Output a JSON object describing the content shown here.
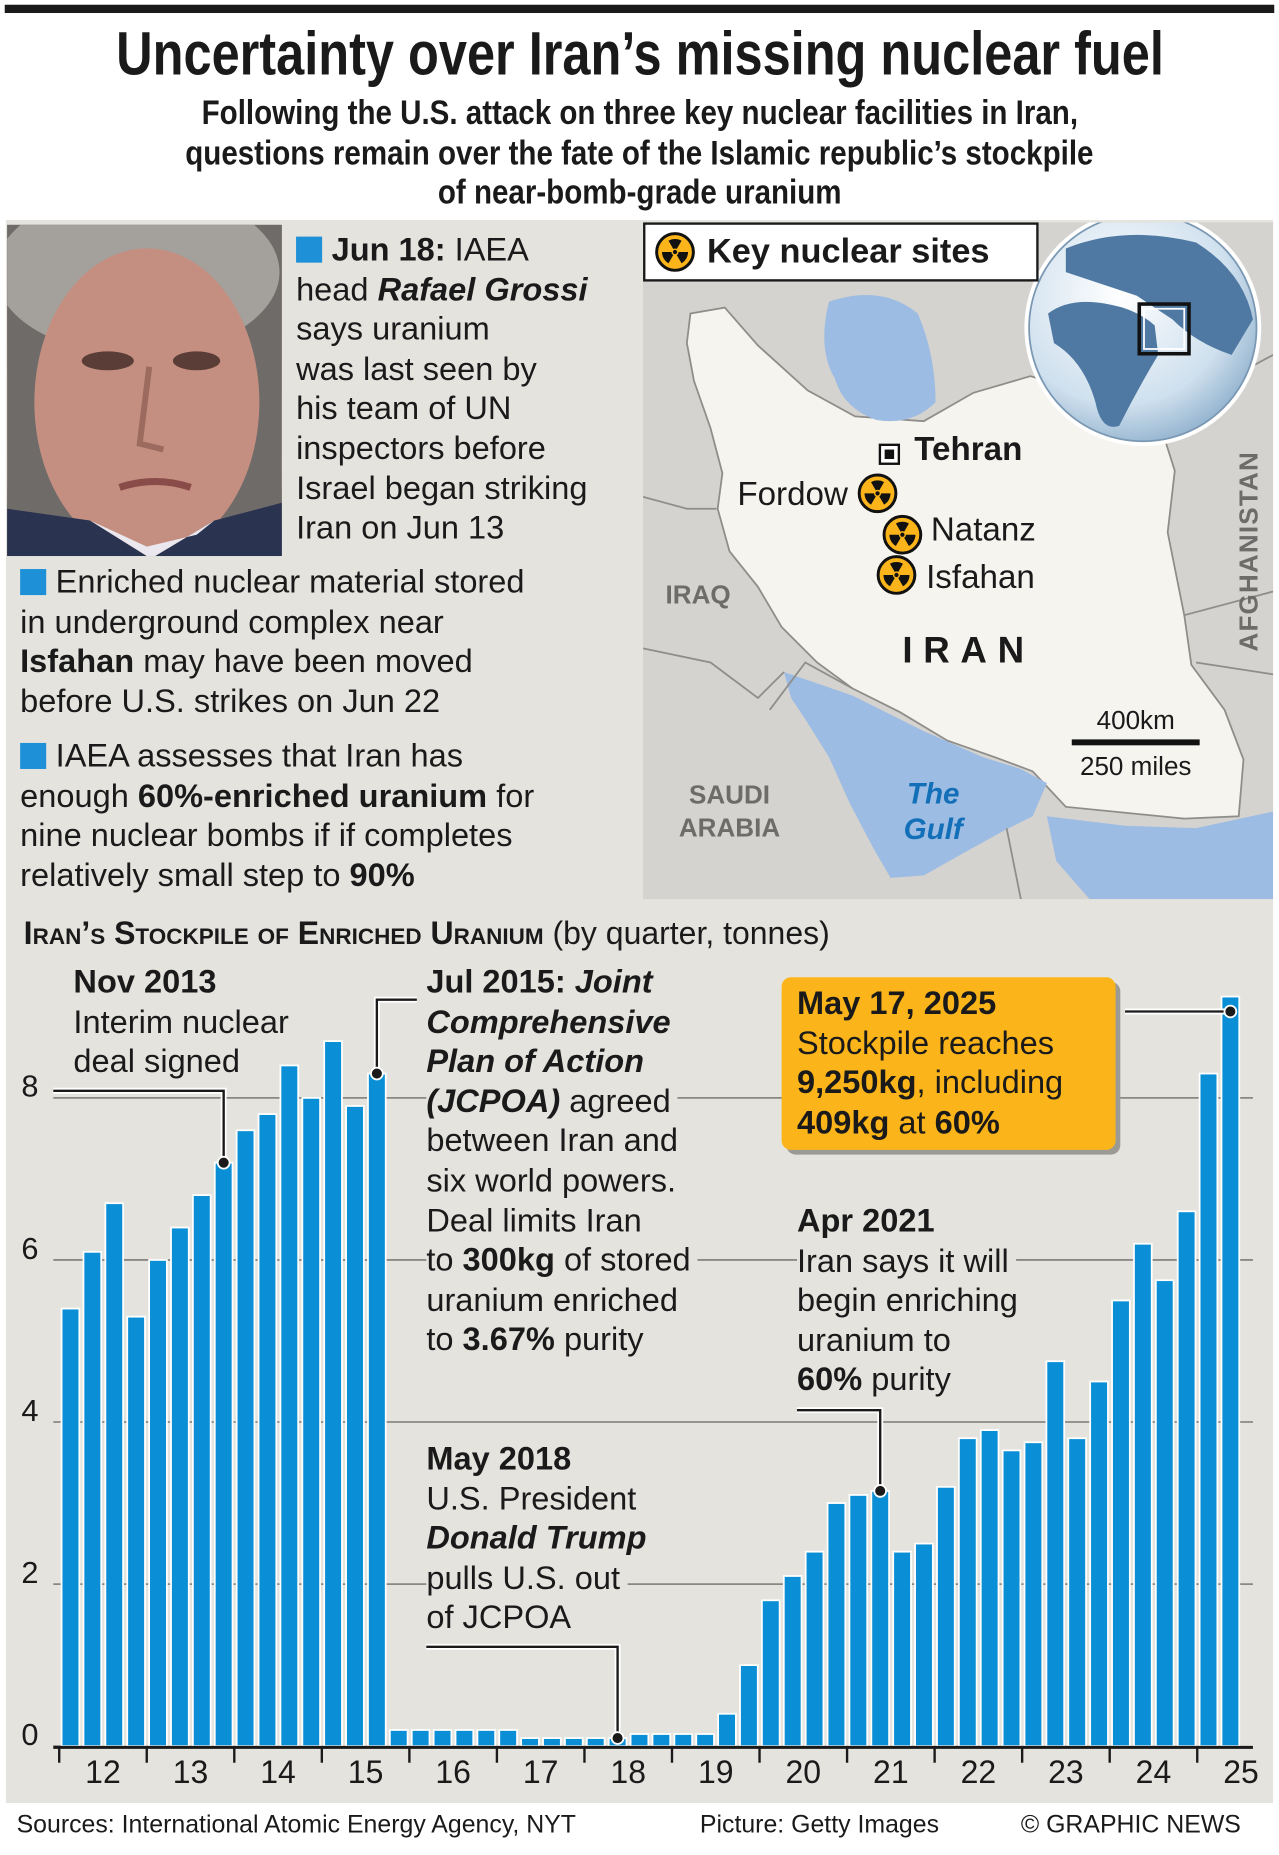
{
  "header": {
    "title": "Uncertainty over Iran’s missing nuclear fuel",
    "subtitle_lines": [
      "Following the U.S. attack on three key nuclear facilities in Iran,",
      "questions remain over the fate of the Islamic republic’s stockpile",
      "of near-bomb-grade uranium"
    ]
  },
  "colors": {
    "bar": "#0a8fd6",
    "bullet": "#1e90d8",
    "highlight_box": "#fbb51a",
    "panel_bg": "#e4e3de",
    "water": "#9dbce3",
    "gulf_label": "#1370b8"
  },
  "photo": {
    "subject": "Rafael Grossi",
    "credit": "Picture: Getty Images"
  },
  "notes": [
    {
      "bullet": true,
      "lines": [
        [
          {
            "t": "Jun 18:",
            "s": "b"
          },
          {
            "t": " IAEA",
            "s": ""
          }
        ],
        [
          {
            "t": "head ",
            "s": ""
          },
          {
            "t": "Rafael Grossi",
            "s": "bi"
          }
        ],
        [
          {
            "t": "says uranium",
            "s": ""
          }
        ],
        [
          {
            "t": "was last seen by",
            "s": ""
          }
        ],
        [
          {
            "t": "his team of UN",
            "s": ""
          }
        ],
        [
          {
            "t": "inspectors before",
            "s": ""
          }
        ],
        [
          {
            "t": "Israel began striking",
            "s": ""
          }
        ],
        [
          {
            "t": "Iran on Jun 13",
            "s": ""
          }
        ]
      ]
    },
    {
      "bullet": true,
      "lines": [
        [
          {
            "t": "Enriched nuclear material stored",
            "s": ""
          }
        ],
        [
          {
            "t": "in underground complex near",
            "s": ""
          }
        ],
        [
          {
            "t": "Isfahan",
            "s": "b"
          },
          {
            "t": " may have been moved",
            "s": ""
          }
        ],
        [
          {
            "t": "before U.S. strikes on Jun 22",
            "s": ""
          }
        ]
      ]
    },
    {
      "bullet": true,
      "lines": [
        [
          {
            "t": "IAEA assesses that Iran has",
            "s": ""
          }
        ],
        [
          {
            "t": "enough ",
            "s": ""
          },
          {
            "t": "60%-enriched uranium",
            "s": "b"
          },
          {
            "t": " for",
            "s": ""
          }
        ],
        [
          {
            "t": "nine nuclear bombs if if completes",
            "s": ""
          }
        ],
        [
          {
            "t": "relatively small step to ",
            "s": ""
          },
          {
            "t": "90%",
            "s": "b"
          }
        ]
      ]
    }
  ],
  "map": {
    "title": "Key nuclear sites",
    "legend_icon": "radiation-icon",
    "capital": "Tehran",
    "sites": [
      "Fordow",
      "Natanz",
      "Isfahan"
    ],
    "country": "IRAN",
    "neighbors": [
      "IRAQ",
      "SAUDI",
      "ARABIA",
      "AFGHANISTAN"
    ],
    "water": [
      "The",
      "Gulf"
    ],
    "scale_km": "400km",
    "scale_miles": "250 miles"
  },
  "chart_data": {
    "type": "bar",
    "title": "Iran’s Stockpile of Enriched Uranium",
    "subtitle": "(by quarter, tonnes)",
    "ylim": [
      0,
      9.5
    ],
    "yticks": [
      "0",
      "2",
      "4",
      "6",
      "8"
    ],
    "grid": true,
    "xtick_labels": [
      "12",
      "13",
      "14",
      "15",
      "16",
      "17",
      "18",
      "19",
      "20",
      "21",
      "22",
      "23",
      "24",
      "25"
    ],
    "values": [
      5.4,
      6.1,
      6.7,
      5.3,
      6.0,
      6.4,
      6.8,
      7.2,
      7.6,
      7.8,
      8.4,
      8.0,
      8.7,
      7.9,
      8.3,
      0.2,
      0.2,
      0.2,
      0.2,
      0.2,
      0.2,
      0.1,
      0.1,
      0.1,
      0.1,
      0.1,
      0.15,
      0.15,
      0.15,
      0.15,
      0.4,
      1.0,
      1.8,
      2.1,
      2.4,
      3.0,
      3.1,
      3.15,
      2.4,
      2.5,
      3.2,
      3.8,
      3.9,
      3.65,
      3.75,
      4.75,
      3.8,
      4.5,
      5.5,
      6.2,
      5.75,
      6.6,
      8.3,
      9.25
    ],
    "annotations": [
      {
        "bar": 7,
        "lines": [
          [
            {
              "t": "Nov 2013",
              "s": "b"
            }
          ],
          [
            {
              "t": "Interim nuclear",
              "s": ""
            }
          ],
          [
            {
              "t": "deal signed",
              "s": ""
            }
          ]
        ]
      },
      {
        "bar": 14,
        "lines": [
          [
            {
              "t": "Jul 2015: ",
              "s": "b"
            },
            {
              "t": "Joint",
              "s": "bi"
            }
          ],
          [
            {
              "t": "Comprehensive",
              "s": "bi"
            }
          ],
          [
            {
              "t": "Plan of Action",
              "s": "bi"
            }
          ],
          [
            {
              "t": "(JCPOA)",
              "s": "bi"
            },
            {
              "t": " agreed",
              "s": ""
            }
          ],
          [
            {
              "t": "between Iran and",
              "s": ""
            }
          ],
          [
            {
              "t": "six world powers.",
              "s": ""
            }
          ],
          [
            {
              "t": "Deal limits Iran",
              "s": ""
            }
          ],
          [
            {
              "t": "to ",
              "s": ""
            },
            {
              "t": "300kg",
              "s": "b"
            },
            {
              "t": " of stored",
              "s": ""
            }
          ],
          [
            {
              "t": "uranium enriched",
              "s": ""
            }
          ],
          [
            {
              "t": "to ",
              "s": ""
            },
            {
              "t": "3.67%",
              "s": "b"
            },
            {
              "t": " purity",
              "s": ""
            }
          ]
        ]
      },
      {
        "bar": 25,
        "lines": [
          [
            {
              "t": "May 2018",
              "s": "b"
            }
          ],
          [
            {
              "t": "U.S. President",
              "s": ""
            }
          ],
          [
            {
              "t": "Donald Trump",
              "s": "bi"
            }
          ],
          [
            {
              "t": "pulls U.S. out",
              "s": ""
            }
          ],
          [
            {
              "t": "of JCPOA",
              "s": ""
            }
          ]
        ]
      },
      {
        "bar": 37,
        "lines": [
          [
            {
              "t": "Apr 2021",
              "s": "b"
            }
          ],
          [
            {
              "t": "Iran says it will",
              "s": ""
            }
          ],
          [
            {
              "t": "begin enriching",
              "s": ""
            }
          ],
          [
            {
              "t": "uranium to",
              "s": ""
            }
          ],
          [
            {
              "t": "60%",
              "s": "b"
            },
            {
              "t": " purity",
              "s": ""
            }
          ]
        ]
      },
      {
        "bar": 53,
        "lines": [
          [
            {
              "t": "May 17, 2025",
              "s": "b"
            }
          ],
          [
            {
              "t": "Stockpile reaches",
              "s": ""
            }
          ],
          [
            {
              "t": "9,250kg",
              "s": "b"
            },
            {
              "t": ", including",
              "s": ""
            }
          ],
          [
            {
              "t": "409kg",
              "s": "b"
            },
            {
              "t": " at ",
              "s": ""
            },
            {
              "t": "60%",
              "s": "b"
            }
          ]
        ]
      }
    ]
  },
  "footer": {
    "sources": "Sources: International Atomic Energy Agency, NYT",
    "picture": "Picture: Getty Images",
    "copyright": "© GRAPHIC NEWS"
  }
}
